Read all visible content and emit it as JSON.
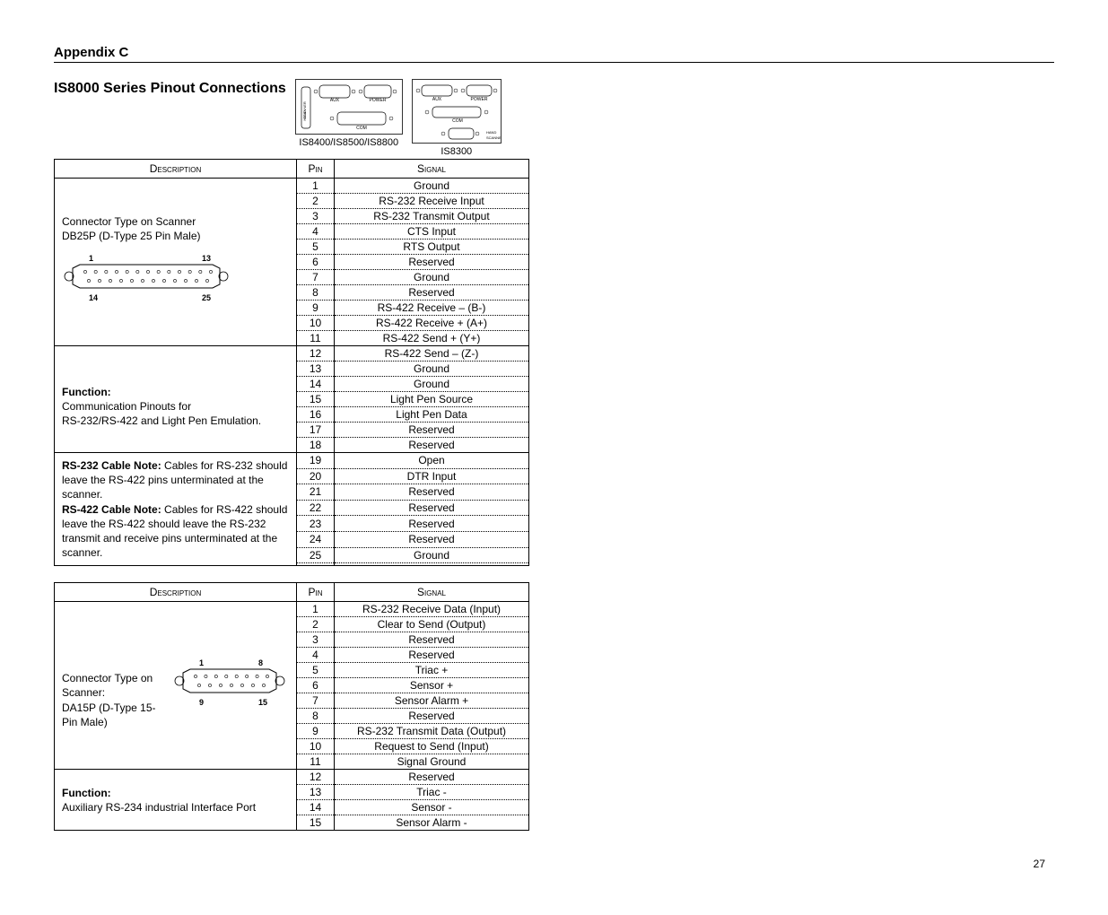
{
  "appendix_label": "Appendix C",
  "section_title": "IS8000 Series Pinout Connections",
  "fig1_caption": "IS8400/IS8500/IS8800",
  "fig2_caption": "IS8300",
  "headers": {
    "desc": "Description",
    "pin": "Pin",
    "signal": "Signal"
  },
  "page_number": "27",
  "table1": {
    "groups": [
      {
        "desc_html": "Connector Type on Scanner<br>DB25P (D-Type 25 Pin Male)",
        "show_db25": true,
        "rows": [
          {
            "pin": "1",
            "signal": "Ground"
          },
          {
            "pin": "2",
            "signal": "RS-232 Receive Input"
          },
          {
            "pin": "3",
            "signal": "RS-232 Transmit Output"
          },
          {
            "pin": "4",
            "signal": "CTS Input"
          },
          {
            "pin": "5",
            "signal": "RTS Output"
          },
          {
            "pin": "6",
            "signal": "Reserved"
          },
          {
            "pin": "7",
            "signal": "Ground"
          },
          {
            "pin": "8",
            "signal": "Reserved"
          },
          {
            "pin": "9",
            "signal": "RS-422 Receive – (B-)"
          },
          {
            "pin": "10",
            "signal": "RS-422 Receive + (A+)"
          },
          {
            "pin": "11",
            "signal": "RS-422 Send + (Y+)"
          }
        ]
      },
      {
        "desc_html": "<br><span class=\"desc-bold\">Function:</span><br>Communication Pinouts for<br>RS-232/RS-422 and Light Pen Emulation.",
        "rows": [
          {
            "pin": "12",
            "signal": "RS-422 Send – (Z-)"
          },
          {
            "pin": "13",
            "signal": "Ground"
          },
          {
            "pin": "14",
            "signal": "Ground"
          },
          {
            "pin": "15",
            "signal": "Light Pen Source"
          },
          {
            "pin": "16",
            "signal": "Light Pen Data"
          },
          {
            "pin": "17",
            "signal": "Reserved"
          },
          {
            "pin": "18",
            "signal": "Reserved"
          }
        ]
      },
      {
        "desc_html": "<span class=\"desc-bold\">RS-232 Cable Note:</span> Cables for RS-232 should leave the RS-422 pins unterminated at the scanner.<br><span class=\"desc-bold\">RS-422 Cable Note:</span> Cables for RS-422 should leave the RS-422 should leave the RS-232 transmit and receive pins unterminated at the scanner.",
        "rows": [
          {
            "pin": "19",
            "signal": "Open"
          },
          {
            "pin": "20",
            "signal": "DTR Input"
          },
          {
            "pin": "21",
            "signal": "Reserved"
          },
          {
            "pin": "22",
            "signal": "Reserved"
          },
          {
            "pin": "23",
            "signal": "Reserved"
          },
          {
            "pin": "24",
            "signal": "Reserved"
          },
          {
            "pin": "25",
            "signal": "Ground"
          },
          {
            "pin": "",
            "signal": ""
          }
        ]
      }
    ]
  },
  "table2": {
    "groups": [
      {
        "desc_html": "<br><br>Connector Type on Scanner:<br>DA15P (D-Type 15-Pin Male)",
        "show_da15": true,
        "rows": [
          {
            "pin": "1",
            "signal": "RS-232 Receive Data (Input)"
          },
          {
            "pin": "2",
            "signal": "Clear to Send (Output)"
          },
          {
            "pin": "3",
            "signal": "Reserved"
          },
          {
            "pin": "4",
            "signal": "Reserved"
          },
          {
            "pin": "5",
            "signal": "Triac +"
          },
          {
            "pin": "6",
            "signal": "Sensor +"
          },
          {
            "pin": "7",
            "signal": "Sensor Alarm +"
          },
          {
            "pin": "8",
            "signal": "Reserved"
          },
          {
            "pin": "9",
            "signal": "RS-232 Transmit Data (Output)"
          },
          {
            "pin": "10",
            "signal": "Request to Send (Input)"
          },
          {
            "pin": "11",
            "signal": "Signal Ground"
          }
        ]
      },
      {
        "desc_html": "<span class=\"desc-bold\">Function:</span><br>Auxiliary RS-234 industrial Interface Port",
        "rows": [
          {
            "pin": "12",
            "signal": "Reserved"
          },
          {
            "pin": "13",
            "signal": "Triac -"
          },
          {
            "pin": "14",
            "signal": "Sensor -"
          },
          {
            "pin": "15",
            "signal": "Sensor Alarm -"
          }
        ]
      }
    ]
  },
  "db25_labels": {
    "tl": "1",
    "tr": "13",
    "bl": "14",
    "br": "25"
  },
  "da15_labels": {
    "tl": "1",
    "tr": "8",
    "bl": "9",
    "br": "15"
  }
}
